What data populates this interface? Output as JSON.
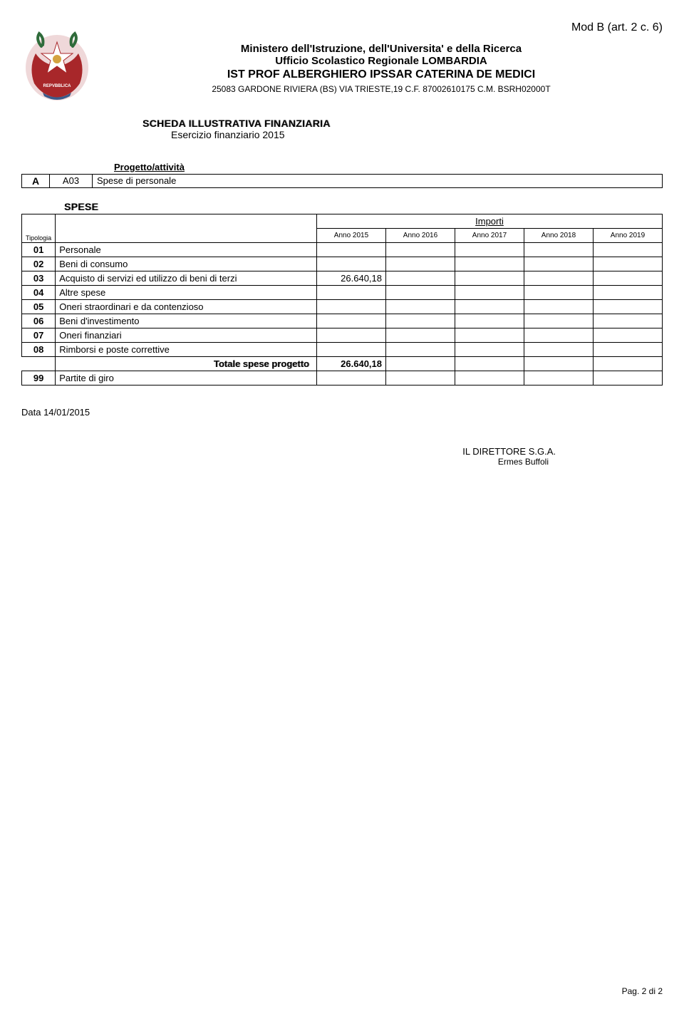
{
  "document": {
    "mod_label": "Mod B (art. 2 c. 6)",
    "ministry": "Ministero dell'Istruzione, dell'Universita' e della Ricerca",
    "office": "Ufficio Scolastico Regionale LOMBARDIA",
    "school": "IST PROF  ALBERGHIERO IPSSAR CATERINA DE MEDICI",
    "address": "25083 GARDONE RIVIERA (BS) VIA TRIESTE,19 C.F. 87002610175 C.M. BSRH02000T",
    "scheda_title": "SCHEDA ILLUSTRATIVA FINANZIARIA",
    "scheda_sub": "Esercizio finanziario 2015",
    "progetto_label": "Progetto/attività",
    "project": {
      "code_a": "A",
      "code_b": "A03",
      "desc": "Spese di personale"
    },
    "spese_label": "SPESE",
    "table": {
      "tipologia_label": "Tipologia",
      "importi_label": "Importi",
      "years": [
        "Anno 2015",
        "Anno 2016",
        "Anno 2017",
        "Anno 2018",
        "Anno 2019"
      ],
      "rows": [
        {
          "tip": "01",
          "desc": "Personale",
          "vals": [
            "",
            "",
            "",
            "",
            ""
          ]
        },
        {
          "tip": "02",
          "desc": "Beni di consumo",
          "vals": [
            "",
            "",
            "",
            "",
            ""
          ]
        },
        {
          "tip": "03",
          "desc": "Acquisto di servizi ed utilizzo di beni di terzi",
          "vals": [
            "26.640,18",
            "",
            "",
            "",
            ""
          ]
        },
        {
          "tip": "04",
          "desc": "Altre spese",
          "vals": [
            "",
            "",
            "",
            "",
            ""
          ]
        },
        {
          "tip": "05",
          "desc": "Oneri straordinari e da contenzioso",
          "vals": [
            "",
            "",
            "",
            "",
            ""
          ]
        },
        {
          "tip": "06",
          "desc": "Beni d'investimento",
          "vals": [
            "",
            "",
            "",
            "",
            ""
          ]
        },
        {
          "tip": "07",
          "desc": "Oneri finanziari",
          "vals": [
            "",
            "",
            "",
            "",
            ""
          ]
        },
        {
          "tip": "08",
          "desc": "Rimborsi e poste correttive",
          "vals": [
            "",
            "",
            "",
            "",
            ""
          ]
        }
      ],
      "total_label": "Totale spese progetto",
      "total_vals": [
        "26.640,18",
        "",
        "",
        "",
        ""
      ],
      "last_row": {
        "tip": "99",
        "desc": "Partite di giro",
        "vals": [
          "",
          "",
          "",
          "",
          ""
        ]
      }
    },
    "date": "Data 14/01/2015",
    "signature_role": "IL DIRETTORE S.G.A.",
    "signature_name": "Ermes Buffoli",
    "page_footer": "Pag. 2 di 2"
  },
  "colors": {
    "emblem_red": "#a8272a",
    "emblem_gold": "#d4a340",
    "emblem_green": "#2f6b3a",
    "emblem_blue": "#3b5a8a",
    "border": "#000000",
    "text": "#000000",
    "background": "#ffffff"
  }
}
